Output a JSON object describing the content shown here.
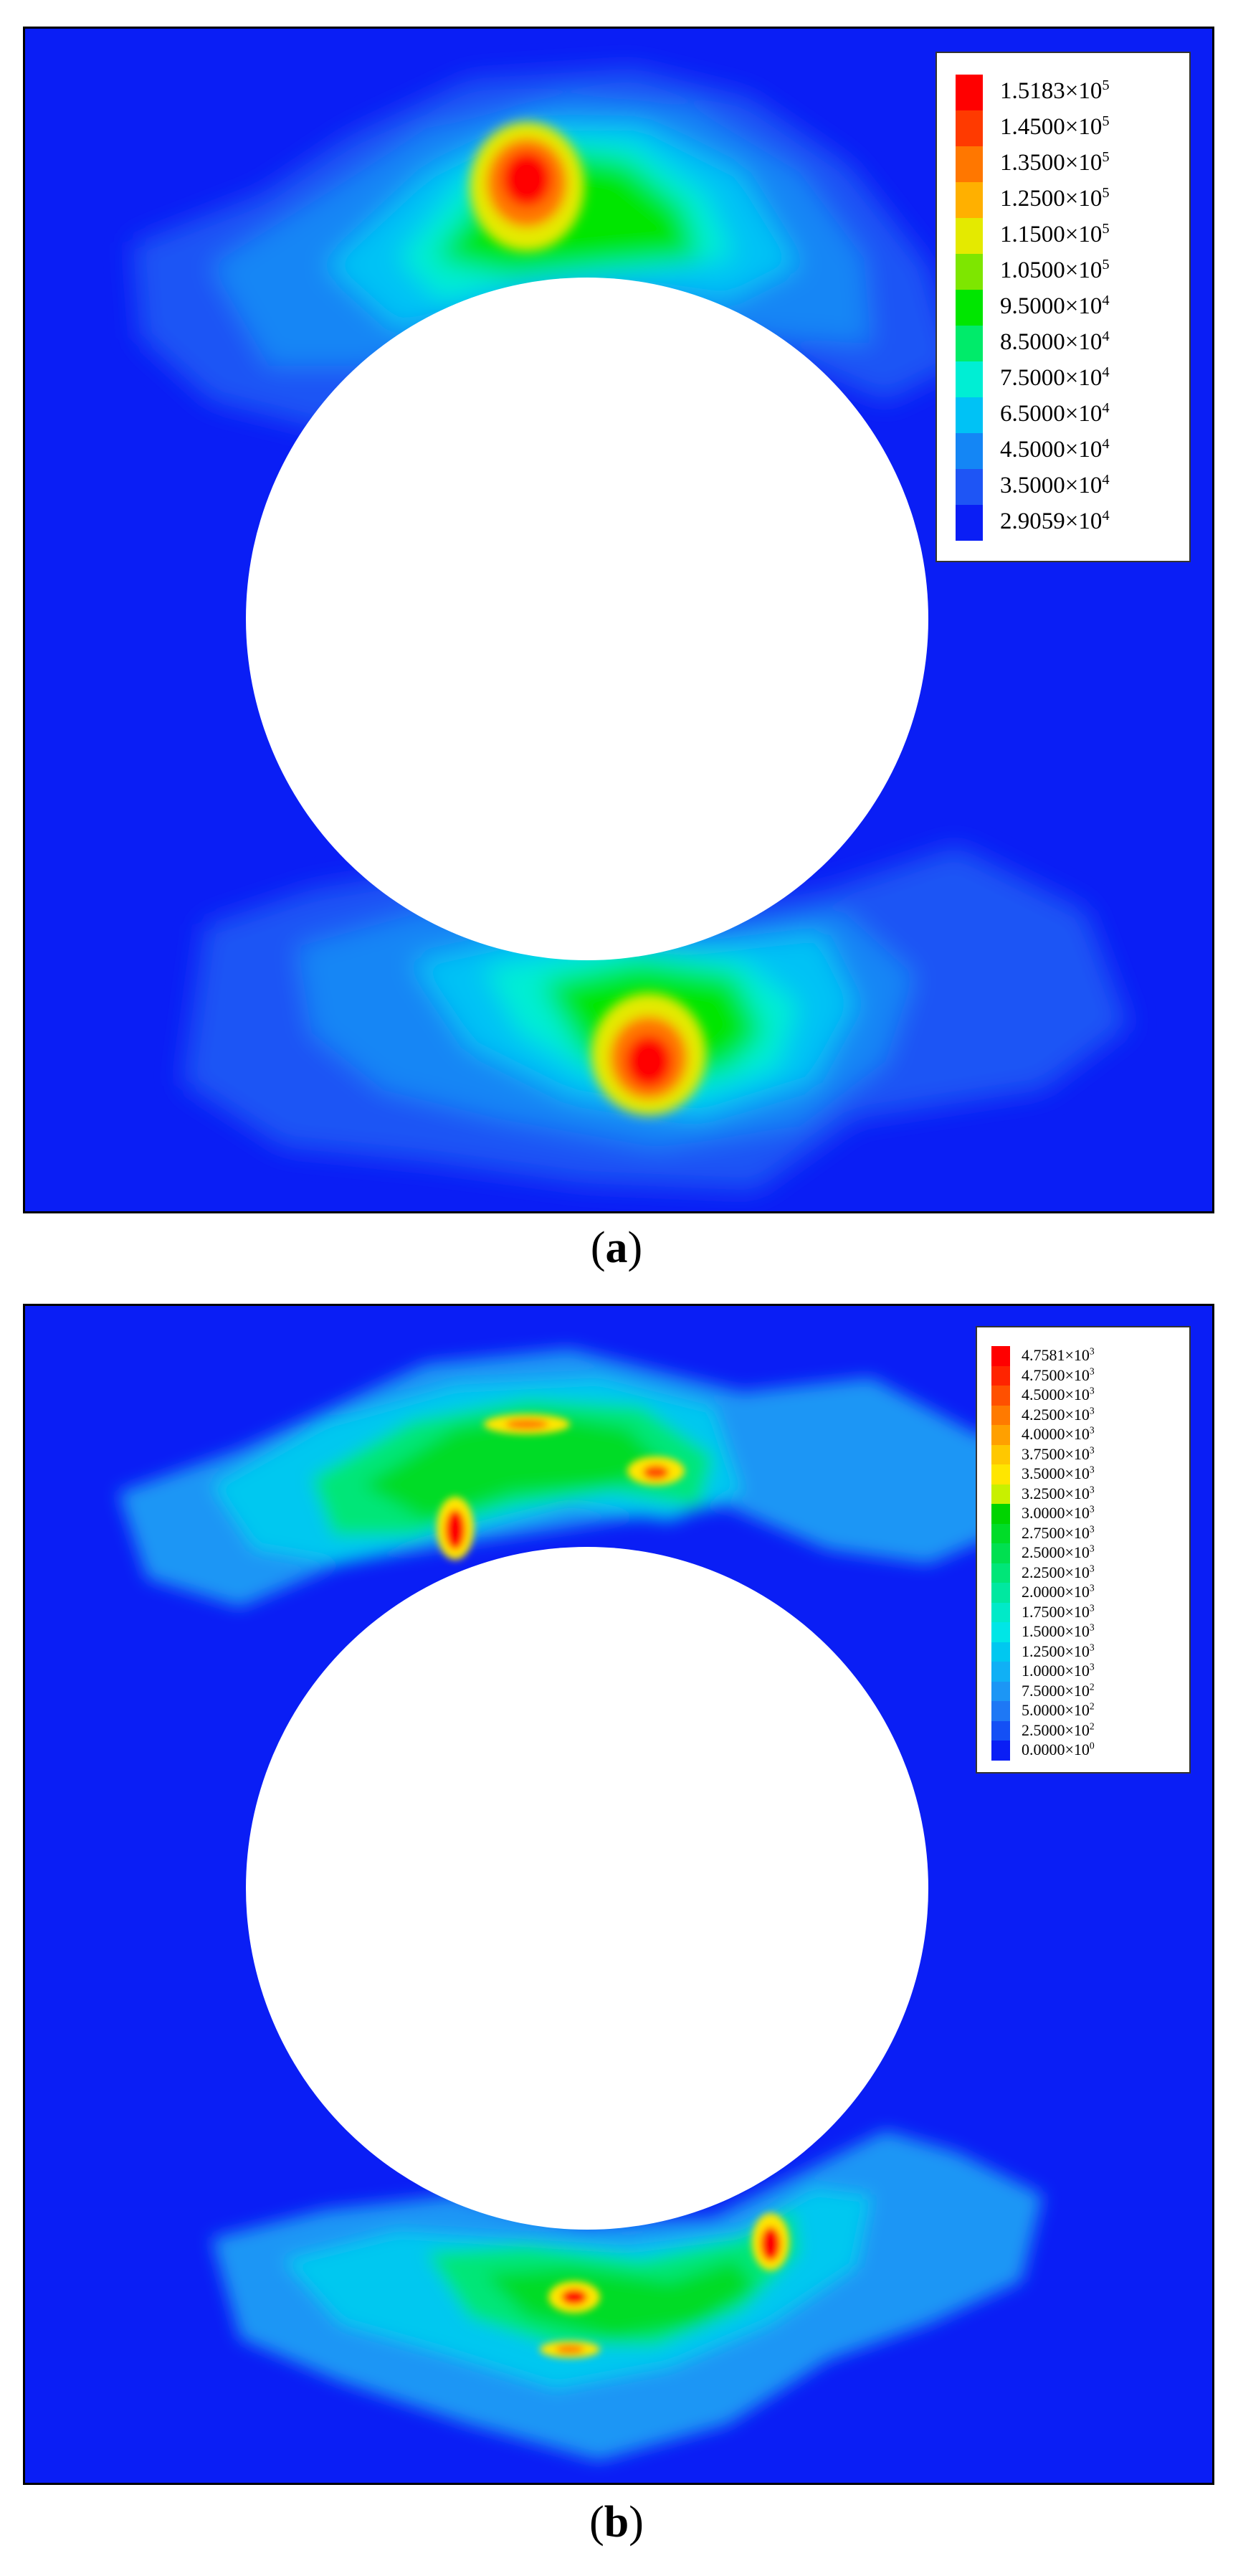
{
  "chart_data": [
    {
      "type": "heatmap",
      "panel_label": "a",
      "legend": [
        {
          "value": "1.5183×10",
          "exp": "5",
          "color": "#ff0000"
        },
        {
          "value": "1.4500×10",
          "exp": "5",
          "color": "#ff3a00"
        },
        {
          "value": "1.3500×10",
          "exp": "5",
          "color": "#ff7700"
        },
        {
          "value": "1.2500×10",
          "exp": "5",
          "color": "#ffb000"
        },
        {
          "value": "1.1500×10",
          "exp": "5",
          "color": "#e4ea00"
        },
        {
          "value": "1.0500×10",
          "exp": "5",
          "color": "#7ee600"
        },
        {
          "value": "9.5000×10",
          "exp": "4",
          "color": "#00e600"
        },
        {
          "value": "8.5000×10",
          "exp": "4",
          "color": "#00eb6a"
        },
        {
          "value": "7.5000×10",
          "exp": "4",
          "color": "#00eed4"
        },
        {
          "value": "6.5000×10",
          "exp": "4",
          "color": "#00c2f5"
        },
        {
          "value": "4.5000×10",
          "exp": "4",
          "color": "#1486f5"
        },
        {
          "value": "3.5000×10",
          "exp": "4",
          "color": "#1e55f5"
        },
        {
          "value": "2.9059×10",
          "exp": "4",
          "color": "#0a1ef5"
        }
      ]
    },
    {
      "type": "heatmap",
      "panel_label": "b",
      "legend": [
        {
          "value": "4.7581×10",
          "exp": "3",
          "color": "#ff0000"
        },
        {
          "value": "4.7500×10",
          "exp": "3",
          "color": "#ff2400"
        },
        {
          "value": "4.5000×10",
          "exp": "3",
          "color": "#ff5000"
        },
        {
          "value": "4.2500×10",
          "exp": "3",
          "color": "#ff7a00"
        },
        {
          "value": "4.0000×10",
          "exp": "3",
          "color": "#ffa000"
        },
        {
          "value": "3.7500×10",
          "exp": "3",
          "color": "#ffc800"
        },
        {
          "value": "3.5000×10",
          "exp": "3",
          "color": "#ffe600"
        },
        {
          "value": "3.2500×10",
          "exp": "3",
          "color": "#c8f000"
        },
        {
          "value": "3.0000×10",
          "exp": "3",
          "color": "#00d400"
        },
        {
          "value": "2.7500×10",
          "exp": "3",
          "color": "#00dc28"
        },
        {
          "value": "2.5000×10",
          "exp": "3",
          "color": "#00e050"
        },
        {
          "value": "2.2500×10",
          "exp": "3",
          "color": "#00e678"
        },
        {
          "value": "2.0000×10",
          "exp": "3",
          "color": "#00e8a0"
        },
        {
          "value": "1.7500×10",
          "exp": "3",
          "color": "#00eac8"
        },
        {
          "value": "1.5000×10",
          "exp": "3",
          "color": "#00e6e6"
        },
        {
          "value": "1.2500×10",
          "exp": "3",
          "color": "#00c8f0"
        },
        {
          "value": "1.0000×10",
          "exp": "3",
          "color": "#10b0f5"
        },
        {
          "value": "7.5000×10",
          "exp": "2",
          "color": "#1c96f5"
        },
        {
          "value": "5.0000×10",
          "exp": "2",
          "color": "#1e78f5"
        },
        {
          "value": "2.5000×10",
          "exp": "2",
          "color": "#1450f5"
        },
        {
          "value": "0.0000×10",
          "exp": "0",
          "color": "#0a1ef5"
        }
      ]
    }
  ],
  "captions": {
    "a": "a",
    "b": "b"
  },
  "colors": {
    "background": "#0a1ef5",
    "hole": "#ffffff"
  }
}
